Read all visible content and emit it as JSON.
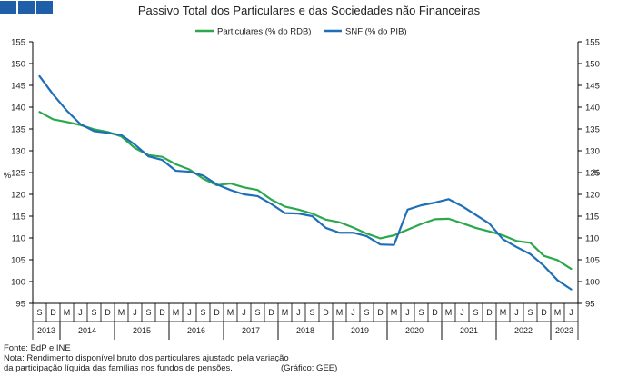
{
  "header": {
    "title": "Passivo Total dos Particulares e das Sociedades não Financeiras"
  },
  "footer": {
    "source": "Fonte: BdP e INE",
    "note_line1": "Nota: Rendimento disponível bruto dos particulares ajustado pela variação",
    "note_line2": "da participação líquida das famílias nos fundos de pensões.",
    "credit": "(Gráfico: GEE)"
  },
  "chart_data": {
    "type": "line",
    "title": "Passivo Total dos Particulares e das Sociedades não Financeiras",
    "ylabel_left": "%",
    "ylabel_right": "%",
    "ylim": [
      95,
      155
    ],
    "yticks": [
      95,
      100,
      105,
      110,
      115,
      120,
      125,
      130,
      135,
      140,
      145,
      150,
      155
    ],
    "grid": false,
    "legend_position": "top-center",
    "quarters": [
      "S",
      "D",
      "M",
      "J",
      "S",
      "D",
      "M",
      "J",
      "S",
      "D",
      "M",
      "J",
      "S",
      "D",
      "M",
      "J",
      "S",
      "D",
      "M",
      "J",
      "S",
      "D",
      "M",
      "J",
      "S",
      "D",
      "M",
      "J",
      "S",
      "D",
      "M",
      "J",
      "S",
      "D",
      "M",
      "J",
      "S",
      "D",
      "M",
      "J"
    ],
    "years": [
      {
        "label": "2013",
        "start": 0,
        "count": 2
      },
      {
        "label": "2014",
        "start": 2,
        "count": 4
      },
      {
        "label": "2015",
        "start": 6,
        "count": 4
      },
      {
        "label": "2016",
        "start": 10,
        "count": 4
      },
      {
        "label": "2017",
        "start": 14,
        "count": 4
      },
      {
        "label": "2018",
        "start": 18,
        "count": 4
      },
      {
        "label": "2019",
        "start": 22,
        "count": 4
      },
      {
        "label": "2020",
        "start": 26,
        "count": 4
      },
      {
        "label": "2021",
        "start": 30,
        "count": 4
      },
      {
        "label": "2022",
        "start": 34,
        "count": 4
      },
      {
        "label": "2023",
        "start": 38,
        "count": 2
      }
    ],
    "series": [
      {
        "name": "Particulares (% do RDB)",
        "color": "#2ca84c",
        "values": [
          138.9,
          137.2,
          136.6,
          135.9,
          134.9,
          134.3,
          133.3,
          130.6,
          129.0,
          128.6,
          126.9,
          125.7,
          123.6,
          122.1,
          122.5,
          121.6,
          121.0,
          118.8,
          117.2,
          116.5,
          115.6,
          114.2,
          113.6,
          112.4,
          111.0,
          109.9,
          110.6,
          111.9,
          113.2,
          114.3,
          114.4,
          113.4,
          112.3,
          111.5,
          110.6,
          109.3,
          108.9,
          105.9,
          104.9,
          102.9
        ]
      },
      {
        "name": "SNF (% do PIB)",
        "color": "#1f6fb8",
        "values": [
          147.1,
          142.9,
          139.2,
          136.1,
          134.5,
          134.1,
          133.6,
          131.4,
          128.7,
          127.9,
          125.4,
          125.2,
          124.3,
          122.3,
          121.0,
          120.0,
          119.6,
          117.8,
          115.7,
          115.6,
          115.0,
          112.3,
          111.2,
          111.2,
          110.4,
          108.5,
          108.4,
          116.5,
          117.5,
          118.1,
          118.9,
          117.3,
          115.3,
          113.3,
          109.7,
          107.9,
          106.3,
          103.6,
          100.3,
          98.2
        ]
      }
    ]
  }
}
